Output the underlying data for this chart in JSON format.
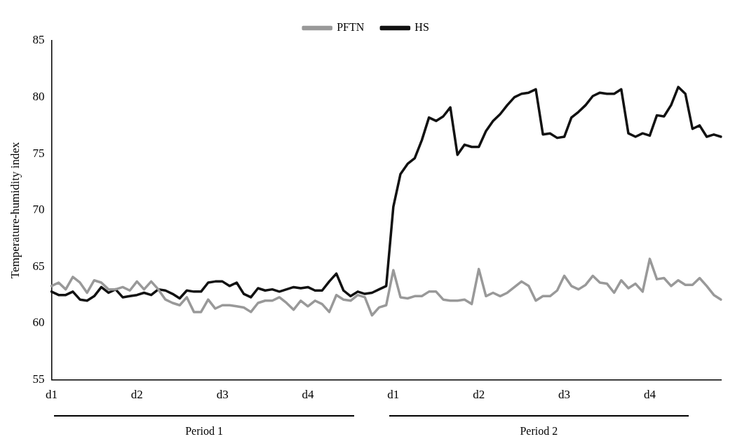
{
  "chart_data": {
    "type": "line",
    "ylabel": "Temperature-humidity index",
    "categories": [
      "d1",
      null,
      null,
      null,
      null,
      null,
      null,
      null,
      null,
      null,
      null,
      null,
      "d2",
      null,
      null,
      null,
      null,
      null,
      null,
      null,
      null,
      null,
      null,
      null,
      "d3",
      null,
      null,
      null,
      null,
      null,
      null,
      null,
      null,
      null,
      null,
      null,
      "d4",
      null,
      null,
      null,
      null,
      null,
      null,
      null,
      null,
      null,
      null,
      null,
      "d1",
      null,
      null,
      null,
      null,
      null,
      null,
      null,
      null,
      null,
      null,
      null,
      "d2",
      null,
      null,
      null,
      null,
      null,
      null,
      null,
      null,
      null,
      null,
      null,
      "d3",
      null,
      null,
      null,
      null,
      null,
      null,
      null,
      null,
      null,
      null,
      null,
      "d4",
      null,
      null,
      null,
      null,
      null,
      null,
      null,
      null,
      null,
      null
    ],
    "series": [
      {
        "name": "PFTN",
        "color": "#999999",
        "values": [
          63.3,
          63.6,
          63.0,
          64.1,
          63.6,
          62.7,
          63.8,
          63.6,
          63.0,
          63.0,
          63.2,
          62.9,
          63.7,
          63.0,
          63.7,
          63.0,
          62.1,
          61.8,
          61.6,
          62.3,
          61.0,
          61.0,
          62.1,
          61.3,
          61.6,
          61.6,
          61.5,
          61.4,
          61.0,
          61.8,
          62.0,
          62.0,
          62.3,
          61.8,
          61.2,
          62.0,
          61.5,
          62.0,
          61.7,
          61.0,
          62.5,
          62.1,
          62.0,
          62.5,
          62.3,
          60.7,
          61.4,
          61.6,
          64.7,
          62.3,
          62.2,
          62.4,
          62.4,
          62.8,
          62.8,
          62.1,
          62.0,
          62.0,
          62.1,
          61.7,
          64.8,
          62.4,
          62.7,
          62.4,
          62.7,
          63.2,
          63.7,
          63.3,
          62.0,
          62.4,
          62.4,
          62.9,
          64.2,
          63.3,
          63.0,
          63.4,
          64.2,
          63.6,
          63.5,
          62.7,
          63.8,
          63.1,
          63.5,
          62.8,
          65.7,
          63.9,
          64.0,
          63.3,
          63.8,
          63.4,
          63.4,
          64.0,
          63.3,
          62.5,
          62.1
        ]
      },
      {
        "name": "HS",
        "color": "#111111",
        "values": [
          62.8,
          62.5,
          62.5,
          62.8,
          62.1,
          62.0,
          62.4,
          63.2,
          62.7,
          63.0,
          62.3,
          62.4,
          62.5,
          62.7,
          62.5,
          63.0,
          62.9,
          62.6,
          62.2,
          62.9,
          62.8,
          62.8,
          63.6,
          63.7,
          63.7,
          63.3,
          63.6,
          62.6,
          62.3,
          63.1,
          62.9,
          63.0,
          62.8,
          63.0,
          63.2,
          63.1,
          63.2,
          62.9,
          62.9,
          63.7,
          64.4,
          62.9,
          62.4,
          62.8,
          62.6,
          62.7,
          63.0,
          63.3,
          70.3,
          73.2,
          74.1,
          74.6,
          76.2,
          78.2,
          77.9,
          78.3,
          79.1,
          74.9,
          75.8,
          75.6,
          75.6,
          77.0,
          77.9,
          78.5,
          79.3,
          80.0,
          80.3,
          80.4,
          80.7,
          76.7,
          76.8,
          76.4,
          76.5,
          78.2,
          78.7,
          79.3,
          80.1,
          80.4,
          80.3,
          80.3,
          80.7,
          76.8,
          76.5,
          76.8,
          76.6,
          78.4,
          78.3,
          79.3,
          80.9,
          80.3,
          77.2,
          77.5,
          76.5,
          76.7,
          76.5
        ]
      }
    ],
    "ylim": [
      55,
      85
    ],
    "yticks": [
      55,
      60,
      65,
      70,
      75,
      80,
      85
    ],
    "grid": false,
    "legend": "top",
    "marker": "none",
    "line_style": "solid",
    "annotations": [
      "Period 1",
      "Period 2"
    ]
  }
}
